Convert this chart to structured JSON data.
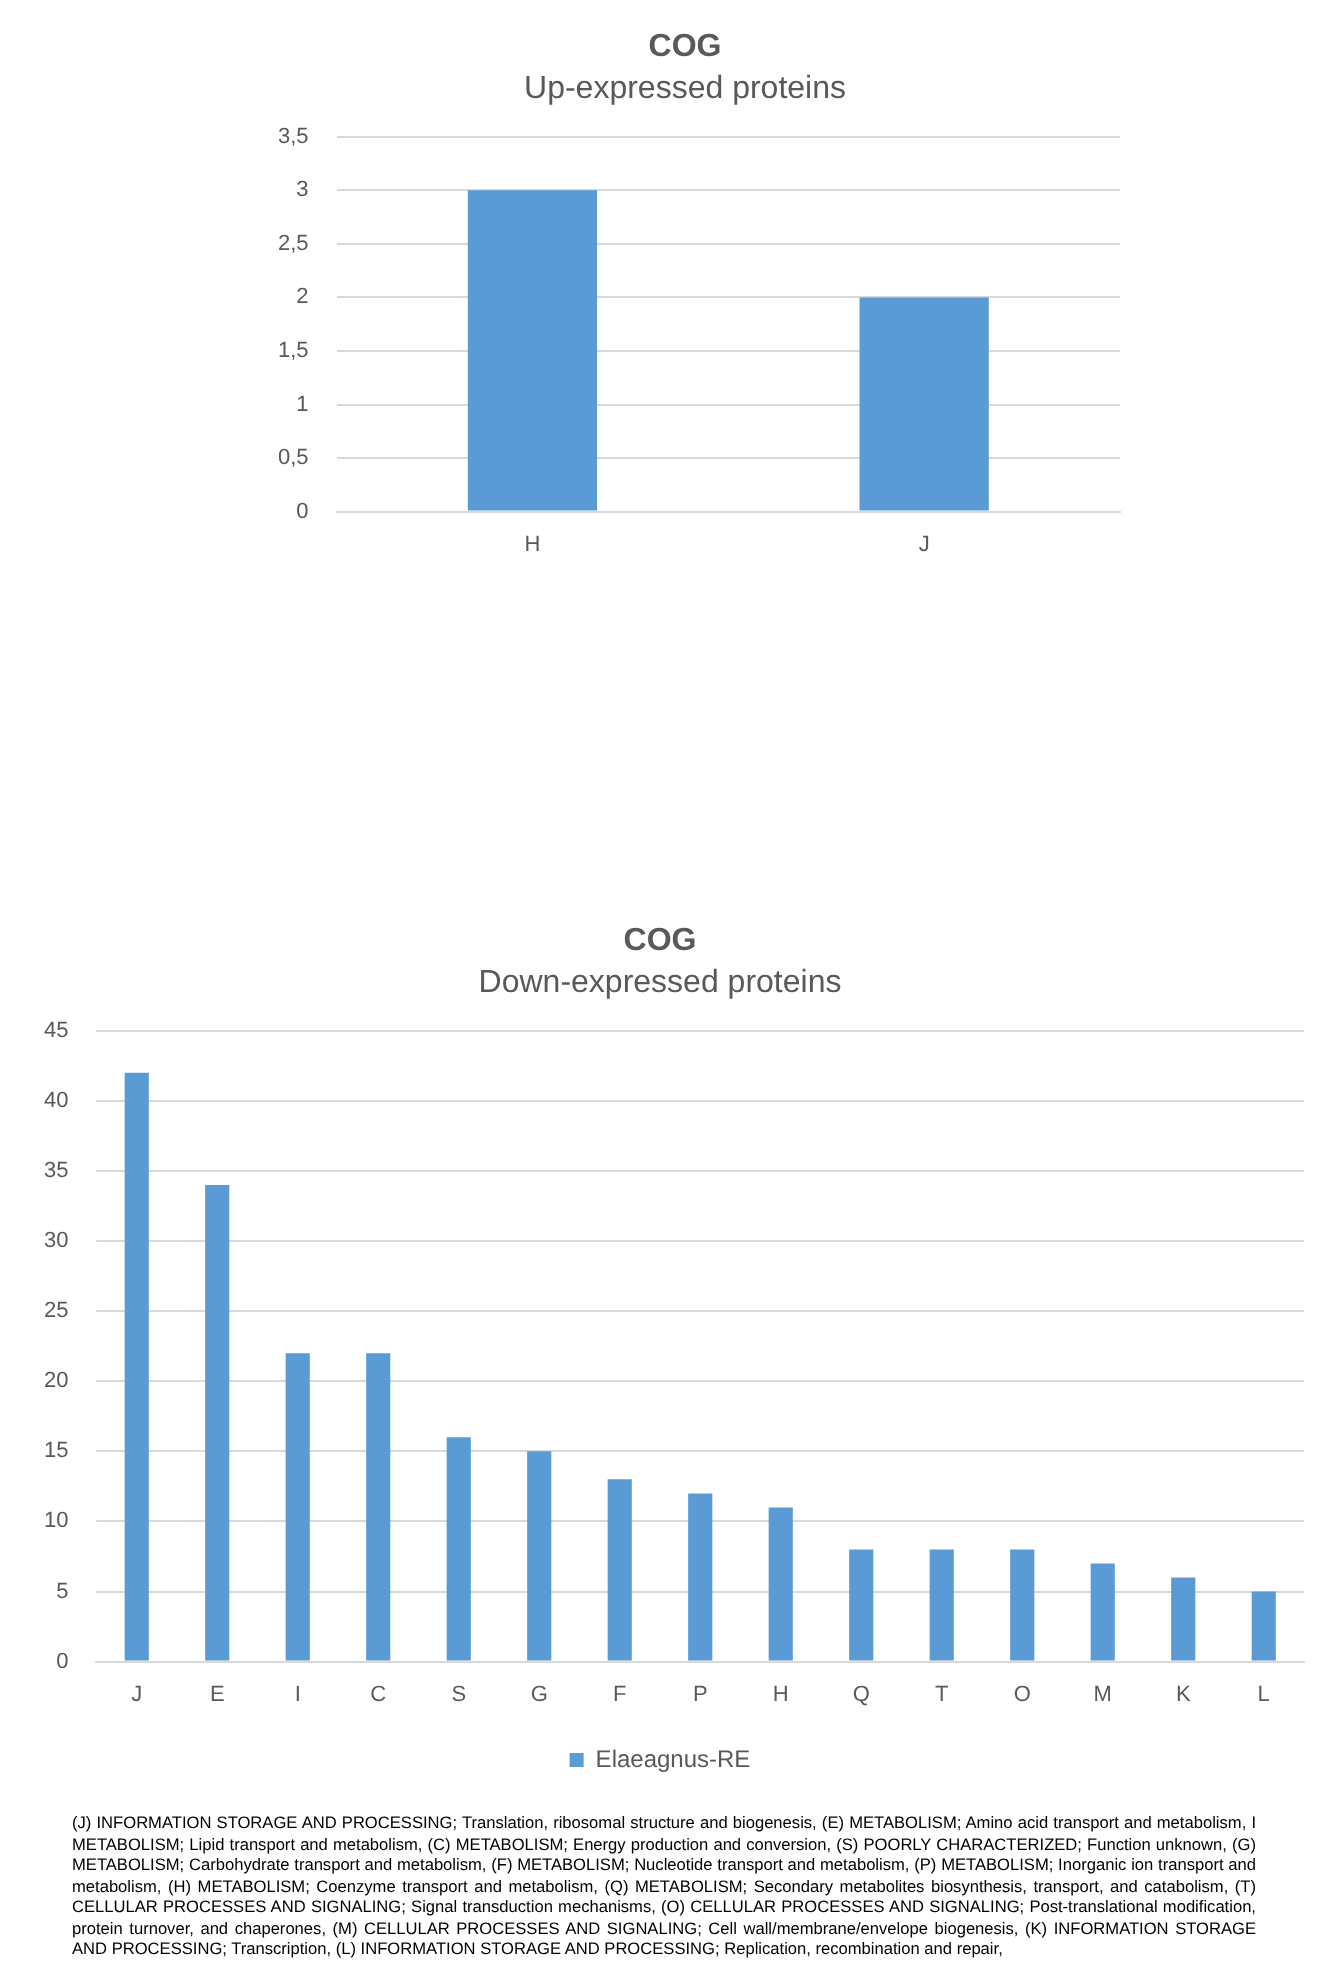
{
  "chart_data": [
    {
      "type": "bar",
      "title": "COG",
      "subtitle": "Up-expressed proteins",
      "categories": [
        "H",
        "J"
      ],
      "values": [
        3,
        2
      ],
      "color": "#5b9bd5",
      "ylim": [
        0,
        3.5
      ],
      "yticks": [
        0,
        {
          "value": 0.5,
          "label": "0,5"
        },
        1,
        {
          "value": 1.5,
          "label": "1,5"
        },
        2,
        {
          "value": 2.5,
          "label": "2,5"
        },
        3,
        {
          "value": 3.5,
          "label": "3,5"
        }
      ],
      "grid": "y"
    },
    {
      "type": "bar",
      "title": "COG",
      "subtitle": "Down-expressed proteins",
      "categories": [
        "J",
        "E",
        "I",
        "C",
        "S",
        "G",
        "F",
        "P",
        "H",
        "Q",
        "T",
        "O",
        "M",
        "K",
        "L"
      ],
      "series": [
        {
          "name": "Elaeagnus-RE",
          "color": "#5b9bd5",
          "values": [
            42,
            34,
            22,
            22,
            16,
            15,
            13,
            12,
            11,
            8,
            8,
            8,
            7,
            6,
            5
          ]
        }
      ],
      "ylim": [
        0,
        45
      ],
      "yticks": [
        0,
        5,
        10,
        15,
        20,
        25,
        30,
        35,
        40,
        45
      ],
      "grid": "y",
      "legend": "bottom",
      "annotations": [
        "(J) INFORMATION STORAGE AND PROCESSING; Translation, ribosomal structure and biogenesis, (E) METABOLISM; Amino acid transport and metabolism, I METABOLISM; Lipid transport and metabolism, (C) METABOLISM; Energy production and conversion, (S) POORLY CHARACTERIZED; Function unknown, (G) METABOLISM; Carbohydrate transport and metabolism, (F) METABOLISM; Nucleotide transport and metabolism, (P) METABOLISM; Inorganic ion transport and metabolism, (H) METABOLISM; Coenzyme transport and metabolism, (Q) METABOLISM; Secondary metabolites biosynthesis, transport, and catabolism, (T) CELLULAR PROCESSES AND SIGNALING; Signal transduction mechanisms, (O) CELLULAR PROCESSES AND SIGNALING; Post-translational modification, protein turnover, and chaperones, (M) CELLULAR PROCESSES AND SIGNALING; Cell wall/membrane/envelope biogenesis, (K) INFORMATION STORAGE AND PROCESSING; Transcription, (L) INFORMATION STORAGE AND PROCESSING; Replication, recombination and repair,"
      ]
    }
  ]
}
